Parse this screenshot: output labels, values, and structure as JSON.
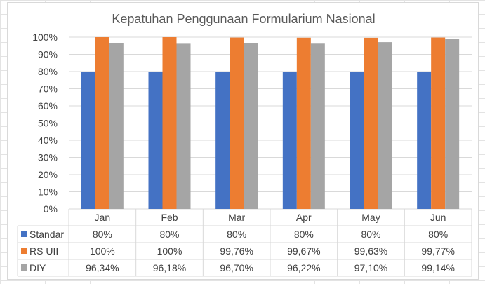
{
  "chart_data": {
    "type": "bar",
    "title": "Kepatuhan Penggunaan Formularium Nasional",
    "categories": [
      "Jan",
      "Feb",
      "Mar",
      "Apr",
      "May",
      "Jun"
    ],
    "y_ticks": [
      "0%",
      "10%",
      "20%",
      "30%",
      "40%",
      "50%",
      "60%",
      "70%",
      "80%",
      "90%",
      "100%"
    ],
    "ylim": [
      0,
      100
    ],
    "grid": true,
    "legend": "data-table",
    "series": [
      {
        "name": "Standar",
        "color": "#4472c4",
        "values": [
          80,
          80,
          80,
          80,
          80,
          80
        ],
        "labels": [
          "80%",
          "80%",
          "80%",
          "80%",
          "80%",
          "80%"
        ]
      },
      {
        "name": "RS UII",
        "color": "#ed7d31",
        "values": [
          100,
          100,
          99.76,
          99.67,
          99.63,
          99.77
        ],
        "labels": [
          "100%",
          "100%",
          "99,76%",
          "99,67%",
          "99,63%",
          "99,77%"
        ]
      },
      {
        "name": "DIY",
        "color": "#a5a5a5",
        "values": [
          96.34,
          96.18,
          96.7,
          96.22,
          97.1,
          99.14
        ],
        "labels": [
          "96,34%",
          "96,18%",
          "96,70%",
          "96,22%",
          "97,10%",
          "99,14%"
        ]
      }
    ]
  }
}
